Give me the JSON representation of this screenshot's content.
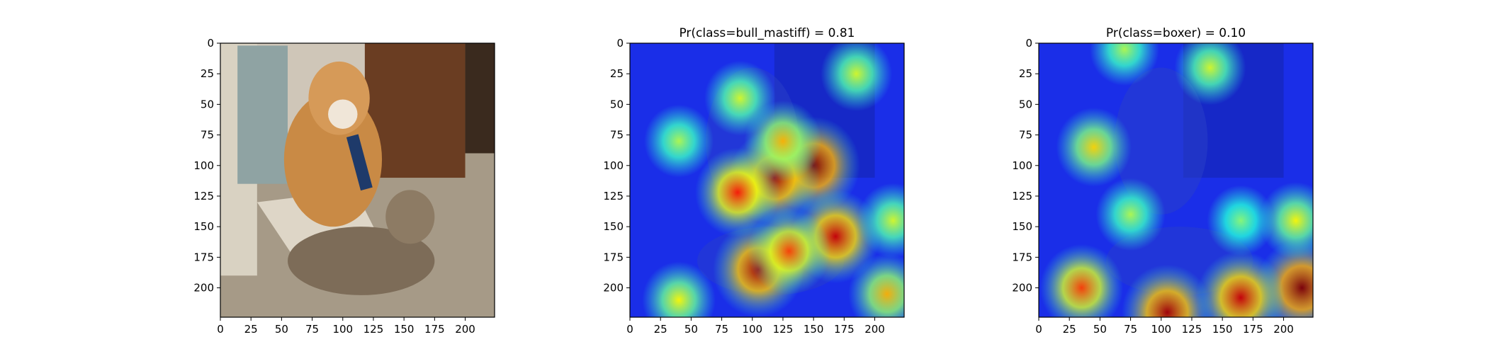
{
  "colors": {
    "axis": "#000000",
    "background": "#ffffff",
    "jet_low": "#1a2ee8",
    "jet_mid": "#2ad7d7",
    "jet_yellow": "#f3f040",
    "jet_high": "#cc1a12",
    "photo_floor": "#a69a87",
    "photo_wall": "#cfc6b8",
    "photo_cabinet": "#6a3d22",
    "photo_dog": "#c98a45",
    "photo_cat": "#7d6c58"
  },
  "chart_data": [
    {
      "type": "heatmap",
      "content": "photo",
      "title": "",
      "xlim": [
        0,
        224
      ],
      "ylim": [
        224,
        0
      ],
      "xticks": [
        0,
        25,
        50,
        75,
        100,
        125,
        150,
        175,
        200
      ],
      "yticks": [
        0,
        25,
        50,
        75,
        100,
        125,
        150,
        175,
        200
      ],
      "xtick_labels": [
        "0",
        "25",
        "50",
        "75",
        "100",
        "125",
        "150",
        "175",
        "200"
      ],
      "ytick_labels": [
        "0",
        "25",
        "50",
        "75",
        "100",
        "125",
        "150",
        "175",
        "200"
      ]
    },
    {
      "type": "heatmap",
      "content": "class_activation_overlay",
      "colormap": "jet",
      "title": "Pr(class=bull_mastiff) =  0.81",
      "xlim": [
        0,
        224
      ],
      "ylim": [
        224,
        0
      ],
      "xticks": [
        0,
        25,
        50,
        75,
        100,
        125,
        150,
        175,
        200
      ],
      "yticks": [
        0,
        25,
        50,
        75,
        100,
        125,
        150,
        175,
        200
      ],
      "xtick_labels": [
        "0",
        "25",
        "50",
        "75",
        "100",
        "125",
        "150",
        "175",
        "200"
      ],
      "ytick_labels": [
        "0",
        "25",
        "50",
        "75",
        "100",
        "125",
        "150",
        "175",
        "200"
      ],
      "hotspots": [
        {
          "x": 150,
          "y": 100,
          "intensity": 1.0
        },
        {
          "x": 118,
          "y": 110,
          "intensity": 0.95
        },
        {
          "x": 105,
          "y": 185,
          "intensity": 0.95
        },
        {
          "x": 168,
          "y": 158,
          "intensity": 0.9
        },
        {
          "x": 88,
          "y": 122,
          "intensity": 0.8
        },
        {
          "x": 130,
          "y": 170,
          "intensity": 0.75
        },
        {
          "x": 125,
          "y": 80,
          "intensity": 0.6
        },
        {
          "x": 210,
          "y": 205,
          "intensity": 0.6
        },
        {
          "x": 40,
          "y": 210,
          "intensity": 0.5
        },
        {
          "x": 90,
          "y": 45,
          "intensity": 0.45
        },
        {
          "x": 185,
          "y": 25,
          "intensity": 0.45
        },
        {
          "x": 215,
          "y": 145,
          "intensity": 0.45
        },
        {
          "x": 40,
          "y": 80,
          "intensity": 0.4
        }
      ]
    },
    {
      "type": "heatmap",
      "content": "class_activation_overlay",
      "colormap": "jet",
      "title": "Pr(class=boxer) =  0.10",
      "xlim": [
        0,
        224
      ],
      "ylim": [
        224,
        0
      ],
      "xticks": [
        0,
        25,
        50,
        75,
        100,
        125,
        150,
        175,
        200
      ],
      "yticks": [
        0,
        25,
        50,
        75,
        100,
        125,
        150,
        175,
        200
      ],
      "xtick_labels": [
        "0",
        "25",
        "50",
        "75",
        "100",
        "125",
        "150",
        "175",
        "200"
      ],
      "ytick_labels": [
        "0",
        "25",
        "50",
        "75",
        "100",
        "125",
        "150",
        "175",
        "200"
      ],
      "hotspots": [
        {
          "x": 215,
          "y": 200,
          "intensity": 1.0
        },
        {
          "x": 105,
          "y": 220,
          "intensity": 0.95
        },
        {
          "x": 165,
          "y": 208,
          "intensity": 0.9
        },
        {
          "x": 35,
          "y": 200,
          "intensity": 0.75
        },
        {
          "x": 45,
          "y": 85,
          "intensity": 0.55
        },
        {
          "x": 210,
          "y": 145,
          "intensity": 0.5
        },
        {
          "x": 140,
          "y": 20,
          "intensity": 0.45
        },
        {
          "x": 75,
          "y": 140,
          "intensity": 0.4
        },
        {
          "x": 70,
          "y": 5,
          "intensity": 0.4
        },
        {
          "x": 165,
          "y": 145,
          "intensity": 0.35
        }
      ]
    }
  ]
}
